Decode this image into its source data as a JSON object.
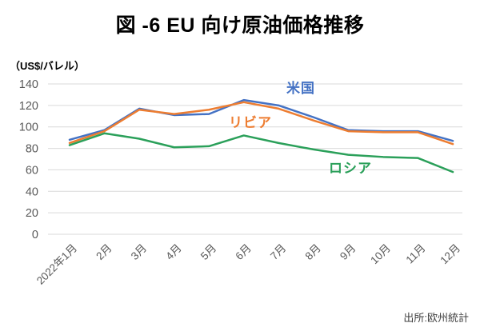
{
  "title": "図 -6 EU 向け原油価格推移",
  "source": "出所:欧州統計",
  "colors": {
    "grid": "#d9d9d9",
    "tick_text": "#595959",
    "title_text": "#000000",
    "source_text": "#404040",
    "background": "#ffffff"
  },
  "chart_data": {
    "type": "line",
    "title": "図 -6 EU 向け原油価格推移",
    "unit_label": "（US$/バレル）",
    "xlabel": "",
    "ylabel": "US$/バレル",
    "ylim": [
      0,
      140
    ],
    "ytick_step": 20,
    "yticks": [
      0,
      20,
      40,
      60,
      80,
      100,
      120,
      140
    ],
    "grid": "horizontal",
    "legend_position": "inline-labels",
    "categories": [
      "2022年1月",
      "2月",
      "3月",
      "4月",
      "5月",
      "6月",
      "7月",
      "8月",
      "9月",
      "10月",
      "11月",
      "12月"
    ],
    "series": [
      {
        "name": "米国",
        "color": "#4472C4",
        "values": [
          88,
          97,
          117,
          111,
          112,
          125,
          120,
          109,
          97,
          96,
          96,
          87
        ]
      },
      {
        "name": "リビア",
        "color": "#ED7D31",
        "values": [
          85,
          96,
          116,
          112,
          116,
          123,
          117,
          106,
          96,
          95,
          95,
          84
        ]
      },
      {
        "name": "ロシア",
        "color": "#2BA05A",
        "values": [
          83,
          94,
          89,
          81,
          82,
          92,
          85,
          79,
          74,
          72,
          71,
          58
        ]
      }
    ]
  }
}
